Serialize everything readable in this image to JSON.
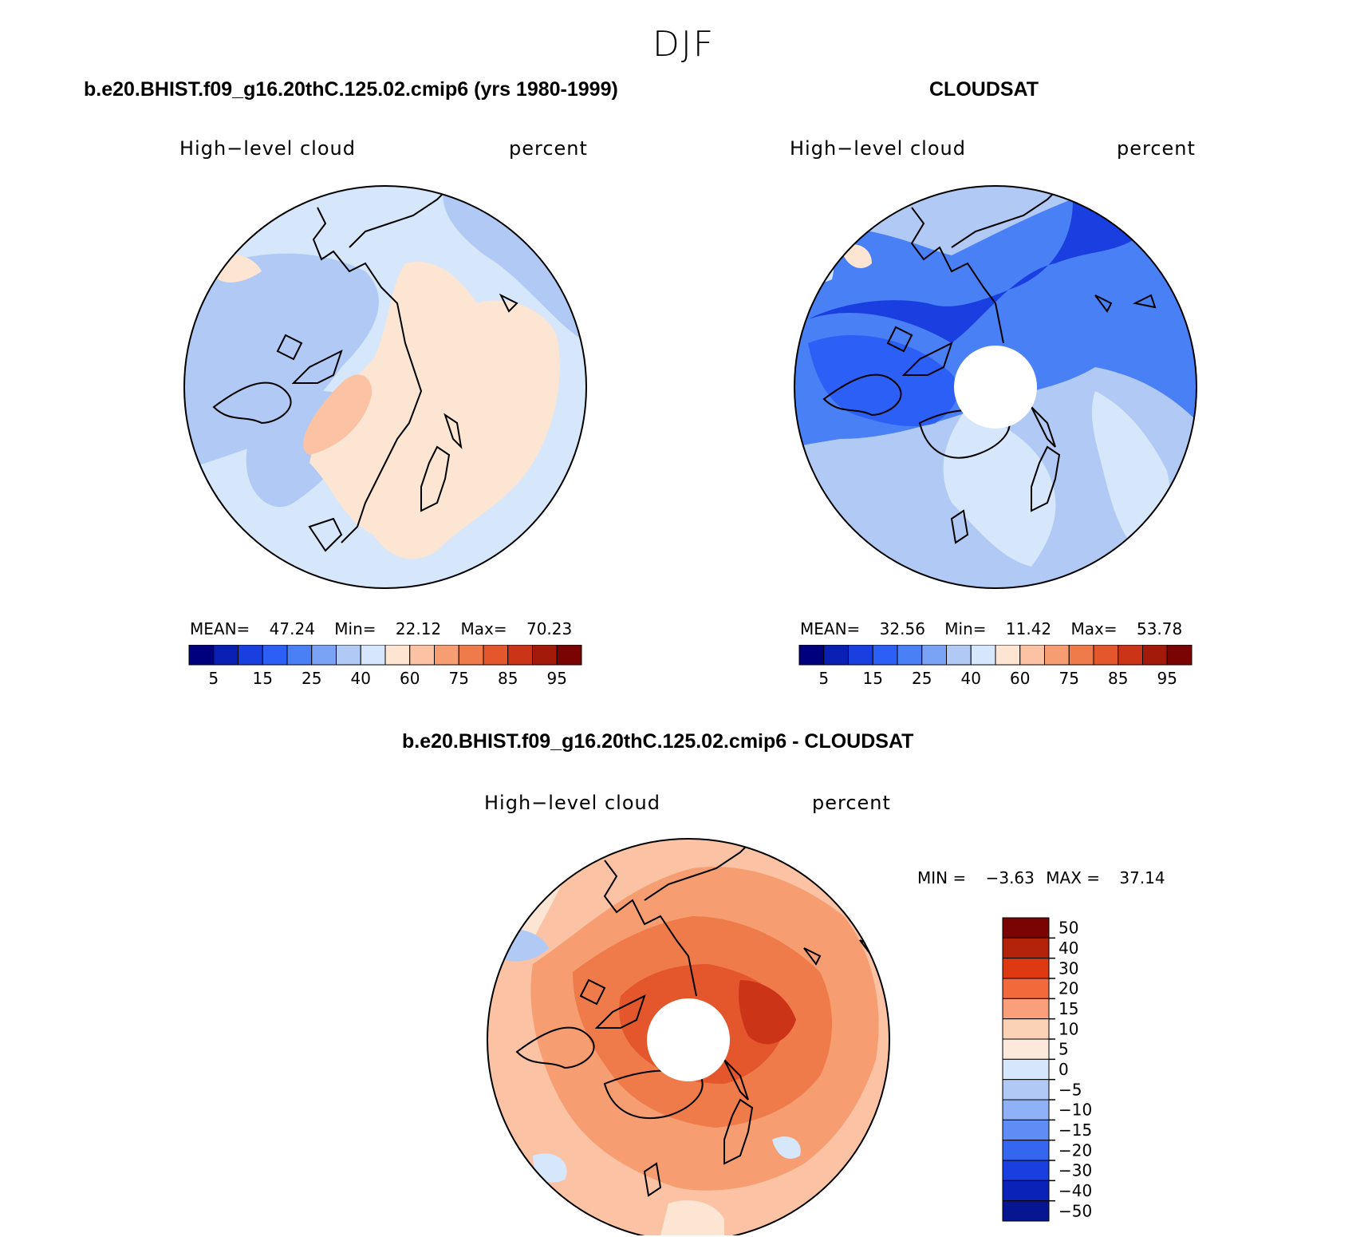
{
  "season": "DJF",
  "panels": [
    {
      "id": "model",
      "title": "b.e20.BHIST.f09_g16.20thC.125.02.cmip6 (yrs 1980-1999)",
      "variable": "High−level cloud",
      "units": "percent",
      "stats": {
        "mean_label": "MEAN=",
        "mean": "47.24",
        "min_label": "Min=",
        "min": "22.12",
        "max_label": "Max=",
        "max": "70.23"
      }
    },
    {
      "id": "obs",
      "title": "CLOUDSAT",
      "variable": "High−level cloud",
      "units": "percent",
      "stats": {
        "mean_label": "MEAN=",
        "mean": "32.56",
        "min_label": "Min=",
        "min": "11.42",
        "max_label": "Max=",
        "max": "53.78"
      }
    },
    {
      "id": "diff",
      "title": "b.e20.BHIST.f09_g16.20thC.125.02.cmip6 - CLOUDSAT",
      "variable": "High−level cloud",
      "units": "percent",
      "stats": {
        "min_label": "MIN =",
        "min": "−3.63",
        "max_label": "MAX =",
        "max": "37.14"
      }
    }
  ],
  "chart_data": [
    {
      "type": "heatmap",
      "title": "b.e20.BHIST.f09_g16.20thC.125.02.cmip6 (yrs 1980-1999)",
      "projection": "north polar stereographic",
      "variable": "High-level cloud",
      "units": "percent",
      "colorbar": {
        "orientation": "horizontal",
        "colors": [
          "#00007f",
          "#0a1fb4",
          "#1a3fe0",
          "#2c5ff5",
          "#4a80f5",
          "#7ba3f5",
          "#b0c9f5",
          "#d6e6fb",
          "#fde5d4",
          "#fbc2a4",
          "#f69e72",
          "#ef7a4a",
          "#e4562c",
          "#cc3418",
          "#a31a0a",
          "#7a0303"
        ],
        "tick_labels": [
          "5",
          "15",
          "25",
          "40",
          "60",
          "75",
          "85",
          "95"
        ]
      },
      "stats": {
        "mean": 47.24,
        "min": 22.12,
        "max": 70.23
      }
    },
    {
      "type": "heatmap",
      "title": "CLOUDSAT",
      "projection": "north polar stereographic",
      "variable": "High-level cloud",
      "units": "percent",
      "colorbar": {
        "orientation": "horizontal",
        "colors": [
          "#00007f",
          "#0a1fb4",
          "#1a3fe0",
          "#2c5ff5",
          "#4a80f5",
          "#7ba3f5",
          "#b0c9f5",
          "#d6e6fb",
          "#fde5d4",
          "#fbc2a4",
          "#f69e72",
          "#ef7a4a",
          "#e4562c",
          "#cc3418",
          "#a31a0a",
          "#7a0303"
        ],
        "tick_labels": [
          "5",
          "15",
          "25",
          "40",
          "60",
          "75",
          "85",
          "95"
        ]
      },
      "stats": {
        "mean": 32.56,
        "min": 11.42,
        "max": 53.78
      }
    },
    {
      "type": "heatmap",
      "title": "b.e20.BHIST.f09_g16.20thC.125.02.cmip6 - CLOUDSAT",
      "projection": "north polar stereographic",
      "variable": "High-level cloud",
      "units": "percent",
      "colorbar": {
        "orientation": "vertical",
        "colors_top_to_bottom": [
          "#7a0303",
          "#b3220a",
          "#dd3a12",
          "#f26a3c",
          "#f9a07a",
          "#fcd2b6",
          "#fde9dc",
          "#d6e6fb",
          "#b0c9f5",
          "#8eb2f5",
          "#5e8ef5",
          "#3566f0",
          "#1a3fe0",
          "#0a22b8",
          "#061590"
        ],
        "tick_labels": [
          "50",
          "40",
          "30",
          "20",
          "15",
          "10",
          "5",
          "0",
          "−5",
          "−10",
          "−15",
          "−20",
          "−30",
          "−40",
          "−50"
        ]
      },
      "stats": {
        "min": -3.63,
        "max": 37.14
      }
    }
  ]
}
